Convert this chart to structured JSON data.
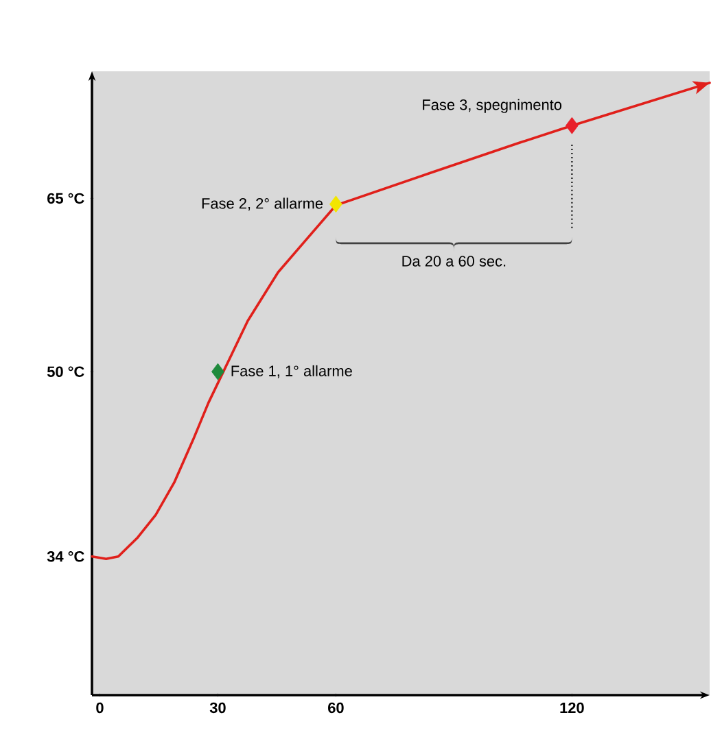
{
  "chart_data": {
    "type": "line",
    "xlim": [
      -2,
      155
    ],
    "ylim": [
      22,
      76
    ],
    "xticks": [
      0,
      30,
      60,
      120
    ],
    "yticks": [
      {
        "value": 34,
        "label": "34 °C"
      },
      {
        "value": 50,
        "label": "50 °C"
      },
      {
        "value": 65,
        "label": "65 °C"
      }
    ],
    "series": [
      {
        "type": "line",
        "color": "#e0201b",
        "line_style": "solid",
        "marker": "none",
        "x": [
          -2,
          1.6,
          4.7,
          9.5,
          14.2,
          18.9,
          23.7,
          27.6,
          37.6,
          45.3,
          52.9,
          60,
          84,
          106.5,
          120,
          155
        ],
        "values": [
          34,
          33.8,
          34,
          35.6,
          37.6,
          40.4,
          44.1,
          47.3,
          54.4,
          58.6,
          61.6,
          64.4,
          67.2,
          69.8,
          71.3,
          75
        ]
      },
      {
        "type": "scatter",
        "marker": "diamond",
        "x": [
          30,
          60,
          120
        ],
        "values": [
          50,
          64.5,
          71.3
        ],
        "colors": [
          "#1e8a3c",
          "#f2e600",
          "#e8202a"
        ]
      }
    ],
    "annotations": [
      {
        "text": "Fase 1, 1° allarme",
        "x": 30,
        "y": 50
      },
      {
        "text": "Fase 2, 2° allarme",
        "x": 60,
        "y": 64.5
      },
      {
        "text": "Fase 3, spegnimento",
        "x": 120,
        "y": 71.3
      },
      "Da 20 a 60 sec."
    ]
  }
}
